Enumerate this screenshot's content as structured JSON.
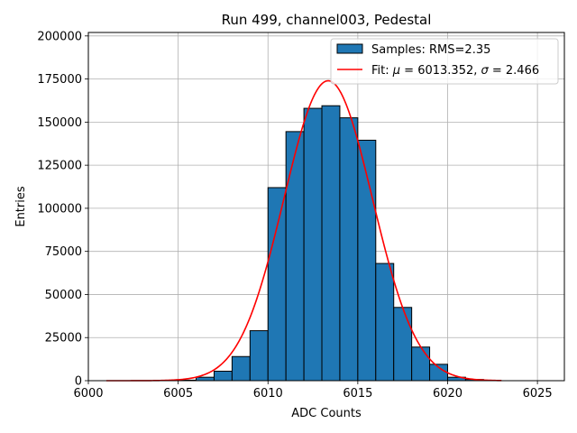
{
  "chart_data": {
    "type": "bar",
    "title": "Run 499, channel003, Pedestal",
    "xlabel": "ADC Counts",
    "ylabel": "Entries",
    "xlim": [
      6000,
      6026.5
    ],
    "ylim": [
      0,
      202000
    ],
    "xticks": [
      6000,
      6005,
      6010,
      6015,
      6020,
      6025
    ],
    "yticks": [
      0,
      25000,
      50000,
      75000,
      100000,
      125000,
      150000,
      175000,
      200000
    ],
    "grid": true,
    "legend_position": "top-right",
    "bin_width": 1,
    "histogram": {
      "name": "Samples: RMS=2.35",
      "color": "#1f77b4",
      "edgecolor": "#000000",
      "bins": [
        {
          "x0": 6005,
          "value": 300
        },
        {
          "x0": 6006,
          "value": 2000
        },
        {
          "x0": 6007,
          "value": 5500
        },
        {
          "x0": 6008,
          "value": 14000
        },
        {
          "x0": 6009,
          "value": 29000
        },
        {
          "x0": 6010,
          "value": 112000
        },
        {
          "x0": 6011,
          "value": 144500
        },
        {
          "x0": 6012,
          "value": 158000
        },
        {
          "x0": 6013,
          "value": 159500
        },
        {
          "x0": 6014,
          "value": 152500
        },
        {
          "x0": 6015,
          "value": 139500
        },
        {
          "x0": 6016,
          "value": 68000
        },
        {
          "x0": 6017,
          "value": 42500
        },
        {
          "x0": 6018,
          "value": 19500
        },
        {
          "x0": 6019,
          "value": 9500
        },
        {
          "x0": 6020,
          "value": 2000
        },
        {
          "x0": 6021,
          "value": 700
        }
      ]
    },
    "fit": {
      "name_prefix": "Fit: ",
      "mu_label": "μ",
      "mu_text": " = 6013.352, ",
      "sigma_label": "σ",
      "sigma_text": " = 2.466",
      "color": "#ff0000",
      "mu": 6013.352,
      "sigma": 2.466,
      "amplitude": 174000,
      "x_range": [
        6001,
        6023
      ]
    }
  }
}
